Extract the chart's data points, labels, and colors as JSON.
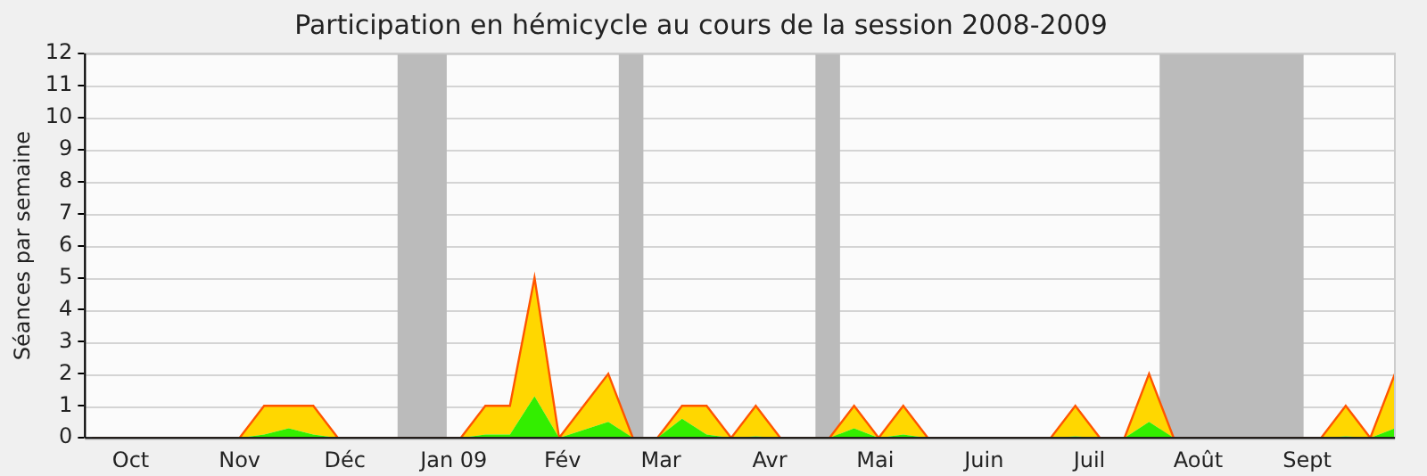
{
  "chart_data": {
    "type": "area",
    "title": "Participation en hémicycle au cours de la session 2008-2009",
    "ylabel": "Séances par semaine",
    "x": [
      "2008-10-04",
      "2008-10-11",
      "2008-10-18",
      "2008-10-25",
      "2008-11-01",
      "2008-11-08",
      "2008-11-15",
      "2008-11-22",
      "2008-11-29",
      "2008-12-06",
      "2008-12-13",
      "2008-12-20",
      "2008-12-27",
      "2009-01-03",
      "2009-01-10",
      "2009-01-17",
      "2009-01-24",
      "2009-01-31",
      "2009-02-07",
      "2009-02-14",
      "2009-02-21",
      "2009-02-28",
      "2009-03-07",
      "2009-03-14",
      "2009-03-21",
      "2009-03-28",
      "2009-04-04",
      "2009-04-11",
      "2009-04-18",
      "2009-04-25",
      "2009-05-02",
      "2009-05-09",
      "2009-05-16",
      "2009-05-23",
      "2009-05-30",
      "2009-06-06",
      "2009-06-13",
      "2009-06-20",
      "2009-06-27",
      "2009-07-04",
      "2009-07-11",
      "2009-07-18",
      "2009-07-25",
      "2009-08-01",
      "2009-08-08",
      "2009-08-15",
      "2009-08-22",
      "2009-08-29",
      "2009-09-05",
      "2009-09-12",
      "2009-09-19",
      "2009-09-26",
      "2009-10-03",
      "2009-10-10"
    ],
    "stacked": true,
    "series": [
      {
        "color": "#33ee00",
        "values": [
          0,
          0,
          0,
          0,
          0,
          0,
          0,
          0.1,
          0.3,
          0.1,
          0,
          0,
          0,
          0,
          0,
          0,
          0.1,
          0.1,
          1.3,
          0,
          0.25,
          0.5,
          0,
          0,
          0.6,
          0.1,
          0,
          0.05,
          0,
          0,
          0,
          0.3,
          0,
          0.1,
          0,
          0,
          0,
          0,
          0,
          0,
          0.05,
          0,
          0,
          0.5,
          0,
          0,
          0,
          0,
          0,
          0,
          0,
          0.05,
          0,
          0.3
        ]
      },
      {
        "color": "#ffd700",
        "values": [
          0,
          0,
          0,
          0,
          0,
          0,
          0,
          0.9,
          0.7,
          0.9,
          0,
          0,
          0,
          0,
          0,
          0,
          0.9,
          0.9,
          3.7,
          0,
          0.75,
          1.5,
          0,
          0,
          0.4,
          0.9,
          0,
          0.95,
          0,
          0,
          0,
          0.7,
          0,
          0.9,
          0,
          0,
          0,
          0,
          0,
          0,
          0.95,
          0,
          0,
          1.5,
          0,
          0,
          0,
          0,
          0,
          0,
          0,
          0.95,
          0,
          1.7
        ]
      }
    ],
    "xlim": [
      "2008-10-02",
      "2009-10-10"
    ],
    "xticks": [
      {
        "value": "2008-10-15",
        "label": "Oct"
      },
      {
        "value": "2008-11-15",
        "label": "Nov"
      },
      {
        "value": "2008-12-15",
        "label": "Déc"
      },
      {
        "value": "2009-01-15",
        "label": "Jan 09"
      },
      {
        "value": "2009-02-15",
        "label": "Fév"
      },
      {
        "value": "2009-03-15",
        "label": "Mar"
      },
      {
        "value": "2009-04-15",
        "label": "Avr"
      },
      {
        "value": "2009-05-15",
        "label": "Mai"
      },
      {
        "value": "2009-06-15",
        "label": "Juin"
      },
      {
        "value": "2009-07-15",
        "label": "Juil"
      },
      {
        "value": "2009-08-15",
        "label": "Août"
      },
      {
        "value": "2009-09-15",
        "label": "Sept"
      }
    ],
    "ylim": [
      0,
      12
    ],
    "yticks": [
      0,
      1,
      2,
      3,
      4,
      5,
      6,
      7,
      8,
      9,
      10,
      11,
      12
    ],
    "bands": [
      {
        "axis": "x",
        "from": "2008-12-30",
        "to": "2009-01-13",
        "color": "#bbbbbb"
      },
      {
        "axis": "x",
        "from": "2009-03-03",
        "to": "2009-03-10",
        "color": "#bbbbbb"
      },
      {
        "axis": "x",
        "from": "2009-04-28",
        "to": "2009-05-05",
        "color": "#bbbbbb"
      },
      {
        "axis": "x",
        "from": "2009-08-04",
        "to": "2009-09-14",
        "color": "#bbbbbb"
      }
    ],
    "grid": "y",
    "legend": false
  }
}
